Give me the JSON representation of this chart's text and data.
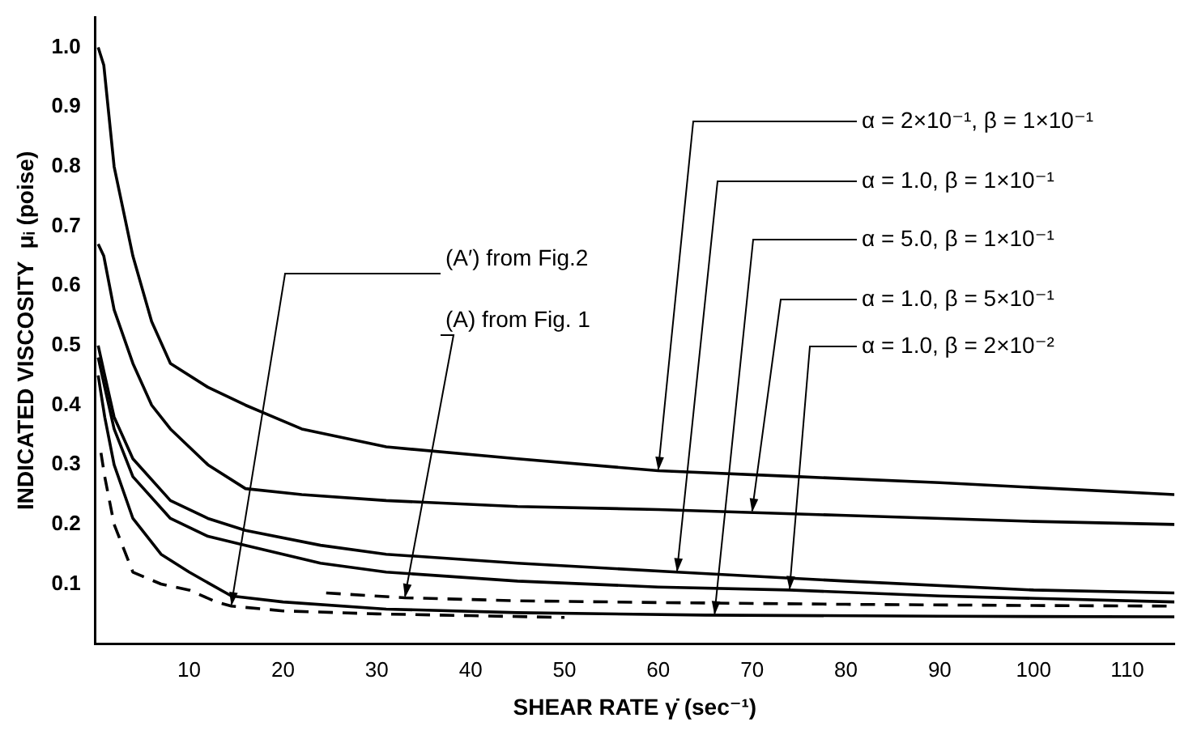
{
  "chart_data": {
    "type": "line",
    "xlabel": "SHEAR RATE γ̇ (sec⁻¹)",
    "ylabel": "INDICATED VISCOSITY  μᵢ (poise)",
    "xlim": [
      0,
      115
    ],
    "ylim": [
      0,
      1.05
    ],
    "xticks": [
      10,
      20,
      30,
      40,
      50,
      60,
      70,
      80,
      90,
      100,
      110
    ],
    "yticks": [
      0.1,
      0.2,
      0.3,
      0.4,
      0.5,
      0.6,
      0.7,
      0.8,
      0.9,
      {
        "value": 1,
        "label": "1.0"
      }
    ],
    "marker": "none",
    "series": [
      {
        "color": "#000000",
        "line_style": "solid",
        "x": [
          0.3,
          0.9,
          2,
          4,
          6,
          8,
          12,
          16,
          22,
          31,
          45,
          60,
          75,
          90,
          115
        ],
        "values": [
          1.0,
          0.97,
          0.8,
          0.65,
          0.54,
          0.47,
          0.43,
          0.4,
          0.36,
          0.33,
          0.31,
          0.29,
          0.28,
          0.27,
          0.25
        ]
      },
      {
        "color": "#000000",
        "line_style": "solid",
        "x": [
          0.3,
          1,
          2,
          4,
          8,
          12,
          16,
          24,
          31,
          45,
          62,
          80,
          100,
          115
        ],
        "values": [
          0.5,
          0.45,
          0.38,
          0.31,
          0.24,
          0.21,
          0.19,
          0.165,
          0.15,
          0.135,
          0.12,
          0.105,
          0.09,
          0.085
        ]
      },
      {
        "color": "#000000",
        "line_style": "solid",
        "x": [
          0.3,
          1,
          2,
          4,
          7,
          10,
          14.5,
          20,
          31,
          45,
          65,
          90,
          115
        ],
        "values": [
          0.45,
          0.38,
          0.3,
          0.21,
          0.15,
          0.12,
          0.08,
          0.07,
          0.058,
          0.052,
          0.048,
          0.046,
          0.045
        ]
      },
      {
        "color": "#000000",
        "line_style": "solid",
        "x": [
          0.3,
          0.9,
          2,
          4,
          6,
          8,
          12,
          16,
          22,
          31,
          45,
          60,
          80,
          100,
          115
        ],
        "values": [
          0.67,
          0.65,
          0.56,
          0.47,
          0.4,
          0.36,
          0.3,
          0.26,
          0.25,
          0.24,
          0.23,
          0.225,
          0.215,
          0.205,
          0.2
        ]
      },
      {
        "color": "#000000",
        "line_style": "solid",
        "x": [
          0.3,
          1,
          2,
          4,
          8,
          12,
          16,
          24,
          31,
          45,
          60,
          74,
          90,
          115
        ],
        "values": [
          0.48,
          0.43,
          0.36,
          0.28,
          0.21,
          0.18,
          0.165,
          0.135,
          0.12,
          0.105,
          0.095,
          0.09,
          0.08,
          0.07
        ]
      },
      {
        "color": "#000000",
        "line_style": "dashed",
        "x": [
          0.6,
          1,
          2,
          4,
          7,
          10,
          12.9,
          14.5,
          20,
          30,
          40,
          50
        ],
        "values": [
          0.32,
          0.28,
          0.2,
          0.12,
          0.1,
          0.09,
          0.07,
          0.063,
          0.055,
          0.05,
          0.047,
          0.044
        ]
      },
      {
        "color": "#000000",
        "line_style": "dashed",
        "x": [
          24.6,
          33,
          45,
          60,
          80,
          100,
          115
        ],
        "values": [
          0.085,
          0.077,
          0.072,
          0.069,
          0.066,
          0.064,
          0.063
        ]
      }
    ],
    "annotations": [
      {
        "text": "α = 2×10⁻¹, β = 1×10⁻¹",
        "x": 60,
        "y": 0.29
      },
      {
        "text": "α = 1.0, β = 1×10⁻¹",
        "x": 62,
        "y": 0.12
      },
      {
        "text": "α = 5.0, β = 1×10⁻¹",
        "x": 66,
        "y": 0.048
      },
      {
        "text": "α = 1.0, β = 5×10⁻¹",
        "x": 70,
        "y": 0.22
      },
      {
        "text": "α = 1.0, β = 2×10⁻²",
        "x": 74,
        "y": 0.09
      },
      {
        "text": "(A′) from Fig.2",
        "x": 14.5,
        "y": 0.063
      },
      {
        "text": "(A) from Fig. 1",
        "x": 33,
        "y": 0.077
      }
    ]
  }
}
